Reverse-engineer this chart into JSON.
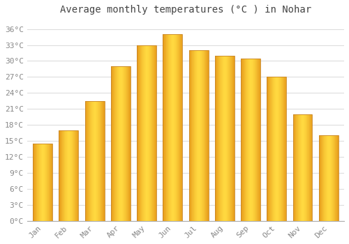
{
  "months": [
    "Jan",
    "Feb",
    "Mar",
    "Apr",
    "May",
    "Jun",
    "Jul",
    "Aug",
    "Sep",
    "Oct",
    "Nov",
    "Dec"
  ],
  "temperatures": [
    14.5,
    17.0,
    22.5,
    29.0,
    33.0,
    35.0,
    32.0,
    31.0,
    30.5,
    27.0,
    20.0,
    16.0
  ],
  "bar_color_main": "#FDB827",
  "bar_color_edge": "#C8872A",
  "title": "Average monthly temperatures (°C ) in Nohar",
  "ylim": [
    0,
    38
  ],
  "ytick_values": [
    0,
    3,
    6,
    9,
    12,
    15,
    18,
    21,
    24,
    27,
    30,
    33,
    36
  ],
  "ytick_labels": [
    "0°C",
    "3°C",
    "6°C",
    "9°C",
    "12°C",
    "15°C",
    "18°C",
    "21°C",
    "24°C",
    "27°C",
    "30°C",
    "33°C",
    "36°C"
  ],
  "background_color": "#ffffff",
  "grid_color": "#dddddd",
  "title_fontsize": 10,
  "tick_fontsize": 8,
  "title_color": "#444444",
  "tick_color": "#888888",
  "font_family": "monospace",
  "bar_width": 0.75
}
